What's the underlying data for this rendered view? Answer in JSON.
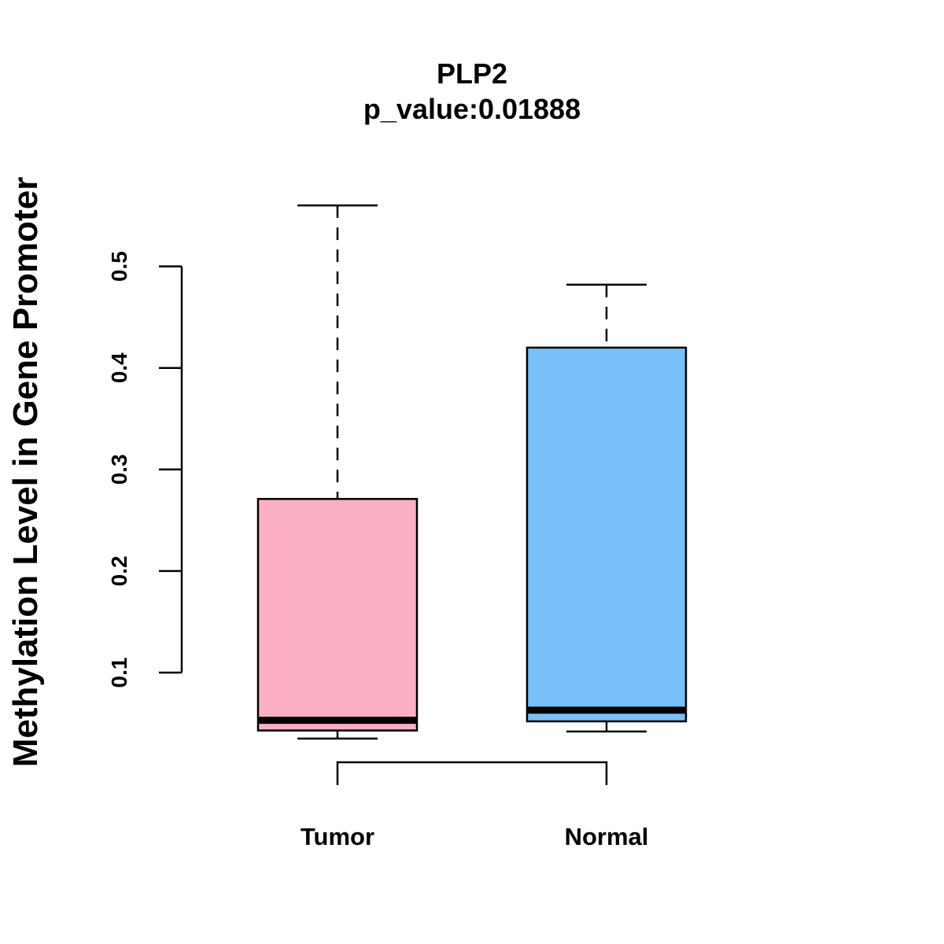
{
  "chart_data": {
    "type": "boxplot",
    "title": "PLP2",
    "subtitle": "p_value:0.01888",
    "xlabel": "",
    "ylabel": "Methylation Level in Gene Promoter",
    "yticks": [
      "0.1",
      "0.2",
      "0.3",
      "0.4",
      "0.5"
    ],
    "ytick_values": [
      0.1,
      0.2,
      0.3,
      0.4,
      0.5
    ],
    "categories": [
      "Tumor",
      "Normal"
    ],
    "boxes": [
      {
        "label": "Tumor",
        "whisker_low": 0.035,
        "q1": 0.043,
        "median": 0.053,
        "q3": 0.271,
        "whisker_high": 0.56,
        "color": "#FDB0C3"
      },
      {
        "label": "Normal",
        "whisker_low": 0.042,
        "q1": 0.052,
        "median": 0.063,
        "q3": 0.42,
        "whisker_high": 0.482,
        "color": "#78C0F8"
      }
    ],
    "grid": false,
    "legend": "none",
    "significance_bracket": true
  },
  "colors": {
    "tumor_fill": "#FDB0C3",
    "normal_fill": "#78C0F8",
    "stroke": "#000000"
  }
}
